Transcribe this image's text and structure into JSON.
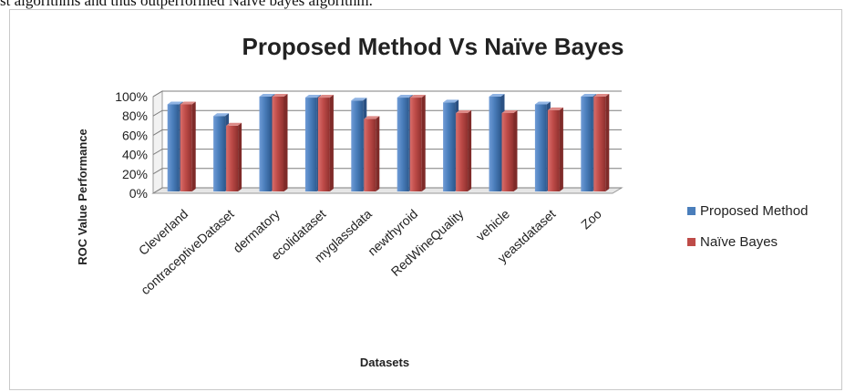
{
  "caption_fragment": "st algorithms and thus outperformed Naïve bayes algorithm.",
  "chart_data": {
    "type": "bar",
    "title": "Proposed Method Vs Naïve Bayes",
    "xlabel": "Datasets",
    "ylabel": "ROC Value Performance",
    "categories": [
      "Cleverland",
      "contraceptiveDataset",
      "dermatory",
      "ecolidataset",
      "myglassdata",
      "newthyroid",
      "RedWineQuality",
      "vehicle",
      "yeastdataset",
      "Zoo"
    ],
    "series": [
      {
        "name": "Proposed Method",
        "color": "#4a7ebb",
        "values": [
          92,
          80,
          100,
          99,
          96,
          99,
          94,
          100,
          92,
          100
        ]
      },
      {
        "name": "Naïve Bayes",
        "color": "#be4b48",
        "values": [
          92,
          70,
          100,
          99,
          77,
          99,
          83,
          83,
          86,
          100
        ]
      }
    ],
    "ylim": [
      0,
      100
    ],
    "yticks": [
      "0%",
      "20%",
      "40%",
      "60%",
      "80%",
      "100%"
    ],
    "grid": true,
    "legend_position": "right"
  }
}
